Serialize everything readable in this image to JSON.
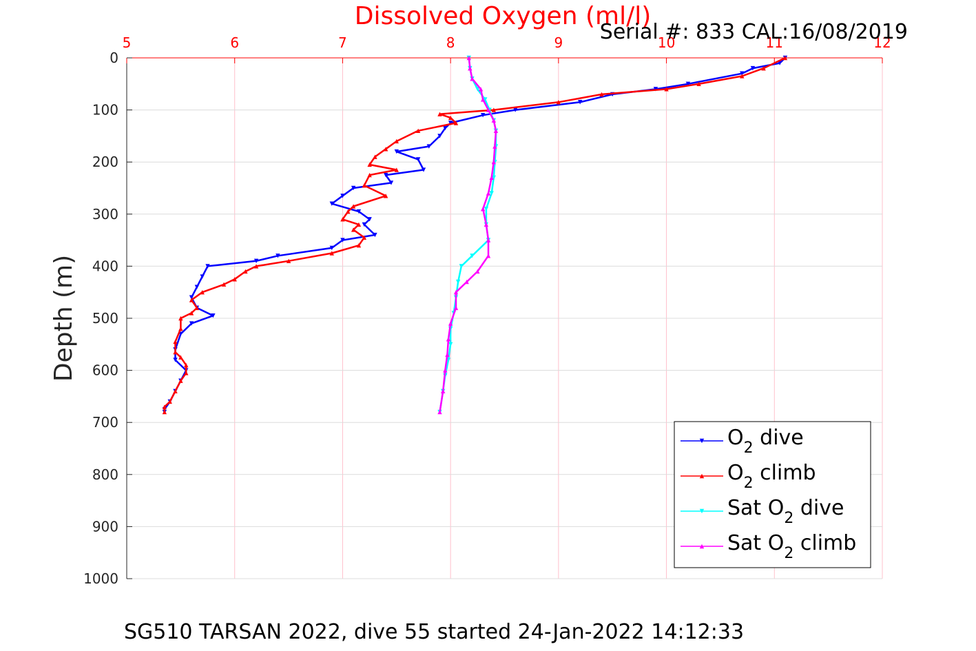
{
  "chart_data": {
    "type": "line",
    "title": "Dissolved Oxygen (ml/l)",
    "subtitle": "Serial #: 833  CAL:16/08/2019",
    "ylabel": "Depth (m)",
    "caption": "SG510 TARSAN 2022, dive 55 started 24-Jan-2022 14:12:33",
    "xlim": [
      5,
      12
    ],
    "ylim": [
      0,
      1000
    ],
    "y_reversed": true,
    "x_axis_position": "top",
    "x_ticks": [
      "5",
      "6",
      "7",
      "8",
      "9",
      "10",
      "11",
      "12"
    ],
    "y_ticks": [
      "0",
      "100",
      "200",
      "300",
      "400",
      "500",
      "600",
      "700",
      "800",
      "900",
      "1000"
    ],
    "grid": true,
    "grid_color": "#ffc0cb",
    "legend_position": "bottom-right",
    "legend": [
      {
        "pre": "O",
        "sub": "2",
        "post": " dive"
      },
      {
        "pre": "O",
        "sub": "2",
        "post": " climb"
      },
      {
        "pre": "Sat O",
        "sub": "2",
        "post": " dive"
      },
      {
        "pre": "Sat O",
        "sub": "2",
        "post": " climb"
      }
    ],
    "series": [
      {
        "key": "o2_dive",
        "color": "#0000ff",
        "marker": "triangle-down",
        "points": [
          [
            11.1,
            0
          ],
          [
            11.05,
            10
          ],
          [
            10.8,
            20
          ],
          [
            10.7,
            30
          ],
          [
            10.2,
            50
          ],
          [
            9.9,
            60
          ],
          [
            9.5,
            70
          ],
          [
            9.2,
            85
          ],
          [
            8.6,
            100
          ],
          [
            8.3,
            110
          ],
          [
            8.0,
            125
          ],
          [
            7.95,
            135
          ],
          [
            7.9,
            150
          ],
          [
            7.8,
            170
          ],
          [
            7.5,
            180
          ],
          [
            7.7,
            195
          ],
          [
            7.75,
            215
          ],
          [
            7.4,
            225
          ],
          [
            7.45,
            240
          ],
          [
            7.1,
            250
          ],
          [
            7.0,
            265
          ],
          [
            6.9,
            280
          ],
          [
            7.15,
            295
          ],
          [
            7.25,
            310
          ],
          [
            7.2,
            320
          ],
          [
            7.3,
            340
          ],
          [
            7.0,
            350
          ],
          [
            6.9,
            365
          ],
          [
            6.4,
            380
          ],
          [
            6.2,
            390
          ],
          [
            5.75,
            400
          ],
          [
            5.7,
            420
          ],
          [
            5.65,
            440
          ],
          [
            5.6,
            460
          ],
          [
            5.65,
            480
          ],
          [
            5.8,
            495
          ],
          [
            5.6,
            510
          ],
          [
            5.5,
            530
          ],
          [
            5.45,
            560
          ],
          [
            5.45,
            580
          ],
          [
            5.55,
            600
          ],
          [
            5.5,
            620
          ],
          [
            5.45,
            640
          ],
          [
            5.4,
            660
          ],
          [
            5.35,
            675
          ],
          [
            5.35,
            680
          ]
        ]
      },
      {
        "key": "o2_climb",
        "color": "#ff0000",
        "marker": "triangle-up",
        "points": [
          [
            11.1,
            0
          ],
          [
            10.9,
            20
          ],
          [
            10.7,
            35
          ],
          [
            10.3,
            50
          ],
          [
            10.0,
            60
          ],
          [
            9.4,
            70
          ],
          [
            9.0,
            85
          ],
          [
            8.4,
            100
          ],
          [
            7.9,
            108
          ],
          [
            8.0,
            115
          ],
          [
            8.05,
            125
          ],
          [
            7.7,
            140
          ],
          [
            7.5,
            160
          ],
          [
            7.4,
            175
          ],
          [
            7.3,
            190
          ],
          [
            7.25,
            205
          ],
          [
            7.5,
            215
          ],
          [
            7.25,
            225
          ],
          [
            7.2,
            245
          ],
          [
            7.4,
            265
          ],
          [
            7.1,
            285
          ],
          [
            7.05,
            295
          ],
          [
            7.0,
            310
          ],
          [
            7.15,
            320
          ],
          [
            7.1,
            330
          ],
          [
            7.2,
            345
          ],
          [
            7.15,
            360
          ],
          [
            6.9,
            375
          ],
          [
            6.5,
            390
          ],
          [
            6.2,
            400
          ],
          [
            6.1,
            410
          ],
          [
            6.0,
            425
          ],
          [
            5.9,
            435
          ],
          [
            5.7,
            450
          ],
          [
            5.6,
            465
          ],
          [
            5.65,
            480
          ],
          [
            5.6,
            490
          ],
          [
            5.5,
            500
          ],
          [
            5.5,
            520
          ],
          [
            5.45,
            545
          ],
          [
            5.45,
            565
          ],
          [
            5.5,
            575
          ],
          [
            5.55,
            590
          ],
          [
            5.55,
            605
          ],
          [
            5.5,
            620
          ],
          [
            5.45,
            640
          ],
          [
            5.4,
            660
          ],
          [
            5.35,
            670
          ],
          [
            5.35,
            680
          ]
        ]
      },
      {
        "key": "sat_o2_dive",
        "color": "#00ffff",
        "marker": "triangle-down",
        "points": [
          [
            8.17,
            0
          ],
          [
            8.18,
            20
          ],
          [
            8.2,
            40
          ],
          [
            8.25,
            60
          ],
          [
            8.32,
            80
          ],
          [
            8.36,
            100
          ],
          [
            8.4,
            120
          ],
          [
            8.42,
            140
          ],
          [
            8.42,
            170
          ],
          [
            8.41,
            200
          ],
          [
            8.4,
            230
          ],
          [
            8.38,
            260
          ],
          [
            8.33,
            290
          ],
          [
            8.33,
            320
          ],
          [
            8.35,
            350
          ],
          [
            8.2,
            380
          ],
          [
            8.1,
            400
          ],
          [
            8.07,
            430
          ],
          [
            8.05,
            460
          ],
          [
            8.03,
            490
          ],
          [
            8.0,
            520
          ],
          [
            8.0,
            550
          ],
          [
            7.98,
            580
          ],
          [
            7.95,
            610
          ],
          [
            7.93,
            640
          ],
          [
            7.9,
            680
          ]
        ]
      },
      {
        "key": "sat_o2_climb",
        "color": "#ff00ff",
        "marker": "triangle-up",
        "points": [
          [
            8.17,
            0
          ],
          [
            8.18,
            20
          ],
          [
            8.2,
            40
          ],
          [
            8.28,
            60
          ],
          [
            8.3,
            80
          ],
          [
            8.35,
            100
          ],
          [
            8.4,
            120
          ],
          [
            8.42,
            140
          ],
          [
            8.41,
            170
          ],
          [
            8.4,
            200
          ],
          [
            8.38,
            230
          ],
          [
            8.35,
            260
          ],
          [
            8.3,
            290
          ],
          [
            8.33,
            320
          ],
          [
            8.35,
            350
          ],
          [
            8.35,
            380
          ],
          [
            8.25,
            410
          ],
          [
            8.15,
            430
          ],
          [
            8.05,
            450
          ],
          [
            8.05,
            480
          ],
          [
            8.0,
            510
          ],
          [
            7.98,
            540
          ],
          [
            7.97,
            570
          ],
          [
            7.95,
            600
          ],
          [
            7.93,
            640
          ],
          [
            7.9,
            680
          ]
        ]
      }
    ]
  }
}
